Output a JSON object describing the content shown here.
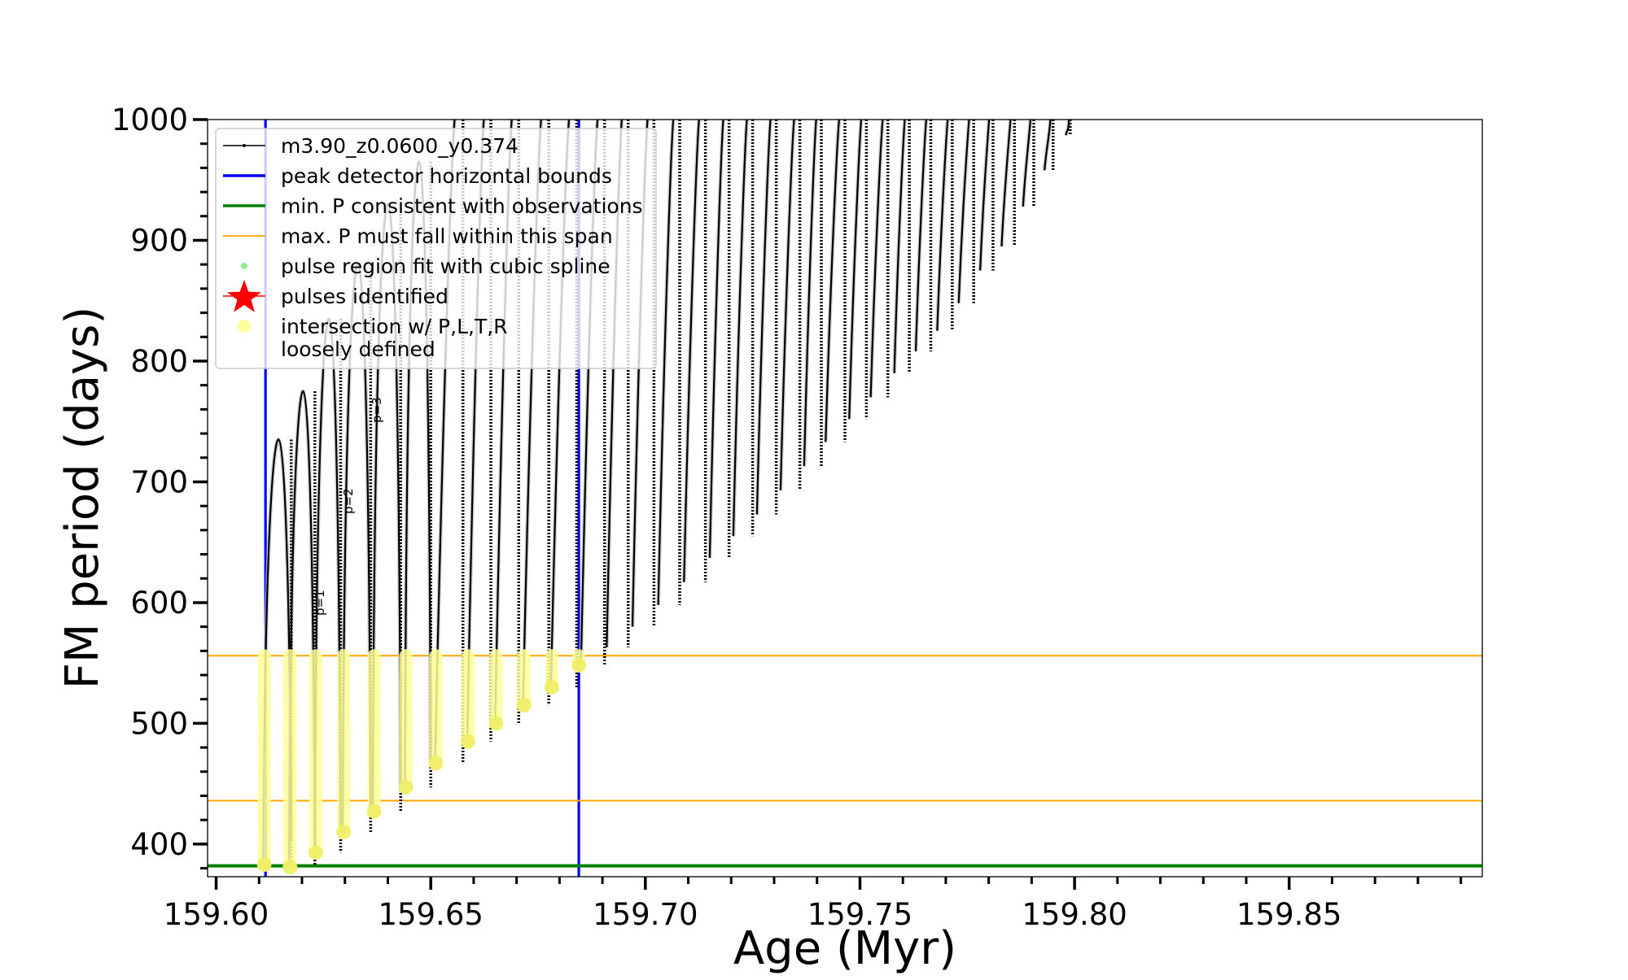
{
  "chart_data": {
    "type": "line",
    "xlabel": "Age (Myr)",
    "ylabel": "FM period (days)",
    "xlim": [
      159.598,
      159.895
    ],
    "ylim": [
      373,
      1000
    ],
    "x_ticks": [
      159.6,
      159.65,
      159.7,
      159.75,
      159.8,
      159.85
    ],
    "x_tick_labels": [
      "159.60",
      "159.65",
      "159.70",
      "159.75",
      "159.80",
      "159.85"
    ],
    "x_minor_step": 0.01,
    "y_ticks": [
      400,
      500,
      600,
      700,
      800,
      900,
      1000
    ],
    "y_tick_labels": [
      "400",
      "500",
      "600",
      "700",
      "800",
      "900",
      "1000"
    ],
    "y_minor_step": 20,
    "grid": false,
    "legend_position": "top-left",
    "legend": [
      {
        "label": "m3.90_z0.0600_y0.374",
        "marker": "line-dot",
        "color": "#000000"
      },
      {
        "label": "peak detector horizontal bounds",
        "marker": "line",
        "color": "#0000ff"
      },
      {
        "label": "min. P consistent with observations",
        "marker": "line",
        "color": "#008000"
      },
      {
        "label": "max. P must fall within this span",
        "marker": "thin-line",
        "color": "#ffa500"
      },
      {
        "label": "pulse region fit with cubic spline",
        "marker": "dot",
        "color": "#90ee90"
      },
      {
        "label": "pulses identified",
        "marker": "star",
        "color": "#ff0000"
      },
      {
        "label": "intersection w/ P,L,T,R",
        "label2": "loosely defined",
        "marker": "dot",
        "color": "#ffff99"
      }
    ],
    "vertical_lines": [
      {
        "x": 159.6115,
        "color": "#0000ff"
      },
      {
        "x": 159.6845,
        "color": "#0000ff"
      }
    ],
    "horizontal_lines": [
      {
        "y": 382,
        "color": "#008000"
      },
      {
        "y": 436,
        "color": "#ffa500"
      },
      {
        "y": 556,
        "color": "#ffa500"
      }
    ],
    "pulse_labels": [
      "p=1",
      "p=2",
      "p=3"
    ],
    "series": [
      {
        "name": "m3.90_z0.0600_y0.374",
        "color": "#000000",
        "loops": [
          {
            "rise": 159.611,
            "fall": 159.6175,
            "pmin": 383,
            "pmax": 735
          },
          {
            "rise": 159.617,
            "fall": 159.623,
            "pmin": 383,
            "pmax": 775
          },
          {
            "rise": 159.623,
            "fall": 159.629,
            "pmin": 393,
            "pmax": 835
          },
          {
            "rise": 159.6295,
            "fall": 159.636,
            "pmin": 410,
            "pmax": 880
          },
          {
            "rise": 159.6365,
            "fall": 159.643,
            "pmin": 427,
            "pmax": 930
          },
          {
            "rise": 159.644,
            "fall": 159.65,
            "pmin": 447,
            "pmax": 965
          },
          {
            "rise": 159.651,
            "fall": 159.6575,
            "pmin": 467,
            "pmax": 1000
          },
          {
            "rise": 159.6585,
            "fall": 159.664,
            "pmin": 485,
            "pmax": 1000
          },
          {
            "rise": 159.665,
            "fall": 159.6705,
            "pmin": 500,
            "pmax": 1000
          },
          {
            "rise": 159.6715,
            "fall": 159.6775,
            "pmin": 515,
            "pmax": 1000
          },
          {
            "rise": 159.678,
            "fall": 159.684,
            "pmin": 530,
            "pmax": 1000
          },
          {
            "rise": 159.685,
            "fall": 159.6905,
            "pmin": 548,
            "pmax": 1000
          },
          {
            "rise": 159.691,
            "fall": 159.696,
            "pmin": 563,
            "pmax": 1000
          },
          {
            "rise": 159.697,
            "fall": 159.702,
            "pmin": 580,
            "pmax": 1000
          },
          {
            "rise": 159.703,
            "fall": 159.708,
            "pmin": 598,
            "pmax": 1000
          },
          {
            "rise": 159.709,
            "fall": 159.714,
            "pmin": 617,
            "pmax": 1000
          },
          {
            "rise": 159.715,
            "fall": 159.7195,
            "pmin": 637,
            "pmax": 1000
          },
          {
            "rise": 159.7205,
            "fall": 159.725,
            "pmin": 655,
            "pmax": 1000
          },
          {
            "rise": 159.726,
            "fall": 159.7305,
            "pmin": 673,
            "pmax": 1000
          },
          {
            "rise": 159.7315,
            "fall": 159.736,
            "pmin": 693,
            "pmax": 1000
          },
          {
            "rise": 159.737,
            "fall": 159.741,
            "pmin": 713,
            "pmax": 1000
          },
          {
            "rise": 159.742,
            "fall": 159.7465,
            "pmin": 733,
            "pmax": 1000
          },
          {
            "rise": 159.7475,
            "fall": 159.7515,
            "pmin": 752,
            "pmax": 1000
          },
          {
            "rise": 159.7525,
            "fall": 159.7565,
            "pmin": 770,
            "pmax": 1000
          },
          {
            "rise": 159.758,
            "fall": 159.7615,
            "pmin": 790,
            "pmax": 1000
          },
          {
            "rise": 159.763,
            "fall": 159.7665,
            "pmin": 808,
            "pmax": 1000
          },
          {
            "rise": 159.768,
            "fall": 159.7715,
            "pmin": 825,
            "pmax": 1000
          },
          {
            "rise": 159.773,
            "fall": 159.7765,
            "pmin": 848,
            "pmax": 1000
          },
          {
            "rise": 159.778,
            "fall": 159.781,
            "pmin": 875,
            "pmax": 1000
          },
          {
            "rise": 159.783,
            "fall": 159.786,
            "pmin": 895,
            "pmax": 1000
          },
          {
            "rise": 159.788,
            "fall": 159.7905,
            "pmin": 928,
            "pmax": 1000
          },
          {
            "rise": 159.793,
            "fall": 159.795,
            "pmin": 958,
            "pmax": 1000
          },
          {
            "rise": 159.798,
            "fall": 159.799,
            "pmin": 987,
            "pmax": 1000
          }
        ]
      },
      {
        "name": "pulse region fit with cubic spline",
        "color": "#c0c0c0",
        "note_text": ""
      },
      {
        "name": "intersection w/ P,L,T,R loosely defined",
        "color": "#ffff99",
        "segments": [
          {
            "x": 159.6112,
            "ymin": 383,
            "ymax": 556
          },
          {
            "x": 159.6172,
            "ymin": 381,
            "ymax": 556
          },
          {
            "x": 159.6232,
            "ymin": 393,
            "ymax": 556
          },
          {
            "x": 159.6297,
            "ymin": 410,
            "ymax": 556
          },
          {
            "x": 159.6368,
            "ymin": 427,
            "ymax": 556
          },
          {
            "x": 159.6442,
            "ymin": 447,
            "ymax": 556
          },
          {
            "x": 159.6512,
            "ymin": 467,
            "ymax": 556
          },
          {
            "x": 159.6587,
            "ymin": 485,
            "ymax": 556
          },
          {
            "x": 159.6652,
            "ymin": 500,
            "ymax": 556
          },
          {
            "x": 159.6717,
            "ymin": 515,
            "ymax": 556
          },
          {
            "x": 159.6782,
            "ymin": 530,
            "ymax": 556
          },
          {
            "x": 159.6845,
            "ymin": 548,
            "ymax": 556
          }
        ]
      }
    ]
  }
}
